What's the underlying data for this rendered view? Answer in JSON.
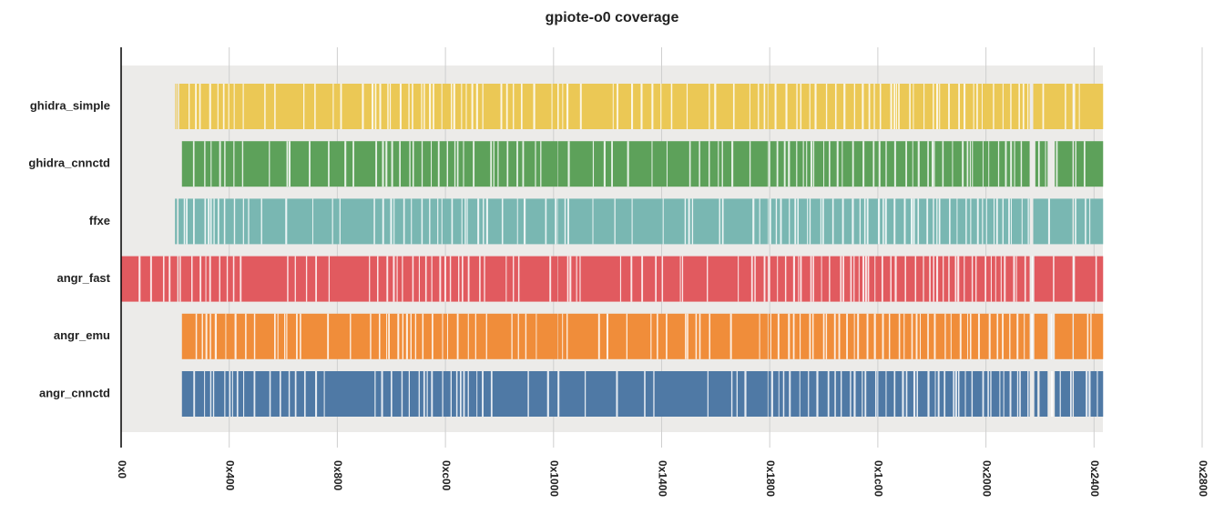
{
  "chart_data": {
    "type": "bar",
    "title": "gpiote-o0 coverage",
    "xlabel": "",
    "ylabel": "",
    "xlim": [
      0,
      10240
    ],
    "x_ticks": [
      {
        "value": 0,
        "label": "0x0"
      },
      {
        "value": 1024,
        "label": "0x400"
      },
      {
        "value": 2048,
        "label": "0x800"
      },
      {
        "value": 3072,
        "label": "0xc00"
      },
      {
        "value": 4096,
        "label": "0x1000"
      },
      {
        "value": 5120,
        "label": "0x1400"
      },
      {
        "value": 6144,
        "label": "0x1800"
      },
      {
        "value": 7168,
        "label": "0x1c00"
      },
      {
        "value": 8192,
        "label": "0x2000"
      },
      {
        "value": 9216,
        "label": "0x2400"
      },
      {
        "value": 10240,
        "label": "0x2800"
      }
    ],
    "shaded_region": [
      0,
      9300
    ],
    "grid": true,
    "categories": [
      "ghidra_simple",
      "ghidra_cnnctd",
      "ffxe",
      "angr_fast",
      "angr_emu",
      "angr_cnnctd"
    ],
    "series": [
      {
        "name": "ghidra_simple",
        "color": "#EBC855",
        "segments": [
          [
            512,
            520
          ],
          [
            528,
            536
          ],
          [
            550,
            4136
          ],
          [
            4140,
            6124
          ],
          [
            6130,
            8606
          ],
          [
            8640,
            9012
          ],
          [
            9024,
            9302
          ]
        ]
      },
      {
        "name": "ghidra_cnnctd",
        "color": "#5DA15A",
        "segments": [
          [
            576,
            4136
          ],
          [
            4140,
            6124
          ],
          [
            6130,
            8606
          ],
          [
            8660,
            8776
          ],
          [
            8844,
            9012
          ],
          [
            9024,
            9302
          ]
        ]
      },
      {
        "name": "ffxe",
        "color": "#79B7B2",
        "segments": [
          [
            510,
            530
          ],
          [
            544,
            4136
          ],
          [
            4140,
            6124
          ],
          [
            6130,
            8606
          ],
          [
            8640,
            9012
          ],
          [
            9024,
            9302
          ]
        ]
      },
      {
        "name": "angr_fast",
        "color": "#E15A5F",
        "segments": [
          [
            0,
            532
          ],
          [
            544,
            4136
          ],
          [
            4140,
            6124
          ],
          [
            6130,
            8606
          ],
          [
            8650,
            9012
          ],
          [
            9024,
            9302
          ]
        ]
      },
      {
        "name": "angr_emu",
        "color": "#F08D3A",
        "segments": [
          [
            576,
            4136
          ],
          [
            4140,
            6124
          ],
          [
            6130,
            8606
          ],
          [
            8650,
            8776
          ],
          [
            8844,
            9012
          ],
          [
            9024,
            9302
          ]
        ]
      },
      {
        "name": "angr_cnnctd",
        "color": "#4F79A5",
        "segments": [
          [
            576,
            4136
          ],
          [
            4140,
            6124
          ],
          [
            6130,
            8606
          ],
          [
            8650,
            8680
          ],
          [
            8700,
            8776
          ],
          [
            8844,
            9012
          ],
          [
            9024,
            9302
          ]
        ]
      }
    ]
  }
}
